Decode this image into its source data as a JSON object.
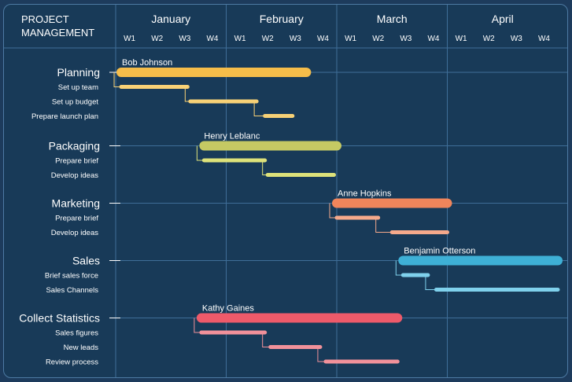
{
  "header": {
    "title_line1": "PROJECT",
    "title_line2": "MANAGEMENT"
  },
  "months": [
    "January",
    "February",
    "March",
    "April"
  ],
  "week_labels": [
    "W1",
    "W2",
    "W3",
    "W4"
  ],
  "colors": {
    "background": "#183a58",
    "grid": "#3f6e98",
    "Planning": "#f5bd4a",
    "Planning_sub": "#f7d176",
    "Packaging": "#c5c963",
    "Packaging_sub": "#dde27a",
    "Marketing": "#f0855b",
    "Marketing_sub": "#f5a98b",
    "Sales": "#3eb0d6",
    "Sales_sub": "#7fd1ec",
    "Collect Statistics": "#ee5a6a",
    "Collect Statistics_sub": "#f1919a"
  },
  "chart_data": {
    "type": "gantt",
    "time_unit": "week",
    "x_range": [
      0,
      16
    ],
    "groups": [
      {
        "name": "Planning",
        "owner": "Bob Johnson",
        "start": 0.2,
        "end": 6.9,
        "tasks": [
          {
            "name": "Set up team",
            "start": 0.2,
            "end": 2.6
          },
          {
            "name": "Set up budget",
            "start": 2.7,
            "end": 5.1
          },
          {
            "name": "Prepare launch plan",
            "start": 5.4,
            "end": 6.4
          }
        ]
      },
      {
        "name": "Packaging",
        "owner": "Henry Leblanc",
        "start": 3.2,
        "end": 8.0,
        "tasks": [
          {
            "name": "Prepare brief",
            "start": 3.2,
            "end": 5.4
          },
          {
            "name": "Develop ideas",
            "start": 5.5,
            "end": 7.9
          }
        ]
      },
      {
        "name": "Marketing",
        "owner": "Anne Hopkins",
        "start": 8.0,
        "end": 12.0,
        "tasks": [
          {
            "name": "Prepare brief",
            "start": 8.0,
            "end": 9.5
          },
          {
            "name": "Develop ideas",
            "start": 10.0,
            "end": 12.0
          }
        ]
      },
      {
        "name": "Sales",
        "owner": "Benjamin Otterson",
        "start": 10.4,
        "end": 16.0,
        "tasks": [
          {
            "name": "Brief sales force",
            "start": 10.4,
            "end": 11.3
          },
          {
            "name": "Sales Channels",
            "start": 11.6,
            "end": 16.0
          }
        ]
      },
      {
        "name": "Collect Statistics",
        "owner": "Kathy Gaines",
        "start": 3.1,
        "end": 10.2,
        "tasks": [
          {
            "name": "Sales figures",
            "start": 3.1,
            "end": 5.4
          },
          {
            "name": "New leads",
            "start": 5.6,
            "end": 7.4
          },
          {
            "name": "Review process",
            "start": 7.6,
            "end": 10.2
          }
        ]
      }
    ]
  }
}
